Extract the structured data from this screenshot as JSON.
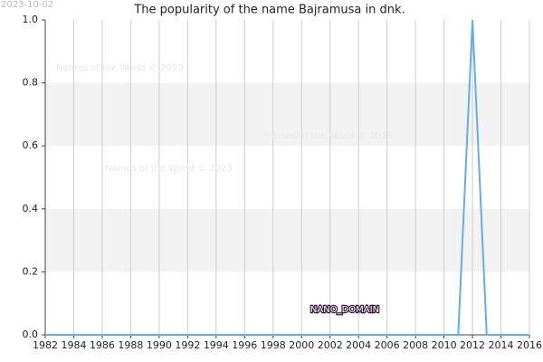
{
  "chart_data": {
    "type": "line",
    "date_stamp": "2023-10-02",
    "title": "The popularity of the name Bajramusa in dnk.",
    "watermarks": [
      "Names of the World © 2023",
      "Names of the World © 2023",
      "Names of the World © 2023"
    ],
    "domain_label": "NANO_DOMAIN",
    "x": [
      1982,
      1983,
      1984,
      1985,
      1986,
      1987,
      1988,
      1989,
      1990,
      1991,
      1992,
      1993,
      1994,
      1995,
      1996,
      1997,
      1998,
      1999,
      2000,
      2001,
      2002,
      2003,
      2004,
      2005,
      2006,
      2007,
      2008,
      2009,
      2010,
      2011,
      2012,
      2013,
      2014,
      2015,
      2016
    ],
    "values": [
      0,
      0,
      0,
      0,
      0,
      0,
      0,
      0,
      0,
      0,
      0,
      0,
      0,
      0,
      0,
      0,
      0,
      0,
      0,
      0,
      0,
      0,
      0,
      0,
      0,
      0,
      0,
      0,
      0,
      0,
      1,
      0,
      0,
      0,
      0
    ],
    "color": "#64aee8",
    "xlim": [
      1982,
      2016
    ],
    "xticks": [
      1982,
      1984,
      1986,
      1988,
      1990,
      1992,
      1994,
      1996,
      1998,
      2000,
      2002,
      2004,
      2006,
      2008,
      2010,
      2012,
      2014,
      2016
    ],
    "ylim": [
      0,
      1
    ],
    "yticks": [
      {
        "value": 0,
        "label": "0.0"
      },
      0.2,
      0.4,
      0.6,
      0.8,
      {
        "value": 1,
        "label": "1.0"
      }
    ],
    "grid": true
  }
}
